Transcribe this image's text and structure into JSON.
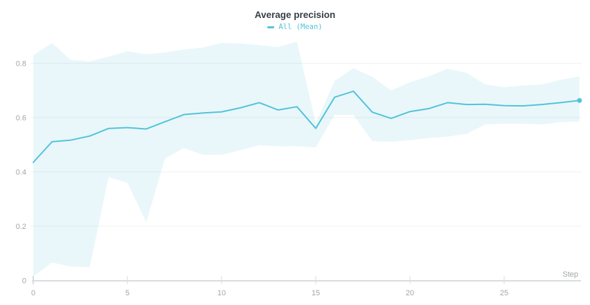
{
  "header": {
    "title": "Average precision"
  },
  "legend": {
    "series_label": "All (Mean)"
  },
  "axes": {
    "x": {
      "label": "Step",
      "ticks": [
        0,
        5,
        10,
        15,
        20,
        25
      ]
    },
    "y": {
      "ticks": [
        "0",
        "0.2",
        "0.4",
        "0.6",
        "0.8"
      ]
    }
  },
  "colors": {
    "line": "#54c2da",
    "band_fill": "rgba(84, 194, 218, 0.13)",
    "title_text": "#373d42",
    "axis_text": "#a2a6a9",
    "gridline": "#f0f1f2",
    "axis_line": "#dadcdd",
    "background": "#ffffff"
  },
  "chart_data": {
    "type": "line",
    "title": "Average precision",
    "xlabel": "Step",
    "ylabel": "",
    "grid": "horizontal",
    "legend_position": "top-center",
    "xlim": [
      0,
      29.5
    ],
    "ylim": [
      0,
      0.9
    ],
    "x_ticks": [
      0,
      5,
      10,
      15,
      20,
      25
    ],
    "y_ticks": [
      0,
      0.2,
      0.4,
      0.6,
      0.8
    ],
    "x": [
      0,
      1,
      2,
      3,
      4,
      5,
      6,
      7,
      8,
      9,
      10,
      11,
      12,
      13,
      14,
      15,
      16,
      17,
      18,
      19,
      20,
      21,
      22,
      23,
      24,
      25,
      26,
      27,
      28,
      29
    ],
    "series": [
      {
        "name": "All (Mean)",
        "values": [
          0.435,
          0.511,
          0.517,
          0.532,
          0.56,
          0.563,
          0.558,
          0.585,
          0.611,
          0.617,
          0.621,
          0.636,
          0.655,
          0.628,
          0.64,
          0.56,
          0.675,
          0.697,
          0.62,
          0.597,
          0.622,
          0.633,
          0.655,
          0.648,
          0.649,
          0.644,
          0.643,
          0.648,
          0.655,
          0.663
        ]
      }
    ],
    "band": {
      "name": "All (min-max range)",
      "upper": [
        0.83,
        0.875,
        0.812,
        0.807,
        0.824,
        0.845,
        0.833,
        0.84,
        0.851,
        0.858,
        0.875,
        0.873,
        0.867,
        0.86,
        0.88,
        0.578,
        0.735,
        0.782,
        0.75,
        0.7,
        0.73,
        0.752,
        0.78,
        0.765,
        0.722,
        0.712,
        0.718,
        0.722,
        0.739,
        0.752
      ],
      "lower": [
        0.015,
        0.066,
        0.051,
        0.049,
        0.381,
        0.36,
        0.215,
        0.45,
        0.488,
        0.463,
        0.463,
        0.48,
        0.498,
        0.494,
        0.495,
        0.49,
        0.61,
        0.61,
        0.513,
        0.511,
        0.517,
        0.525,
        0.53,
        0.54,
        0.575,
        0.577,
        0.577,
        0.575,
        0.583,
        0.586
      ]
    },
    "end_marker": {
      "x": 29,
      "y": 0.663
    }
  }
}
